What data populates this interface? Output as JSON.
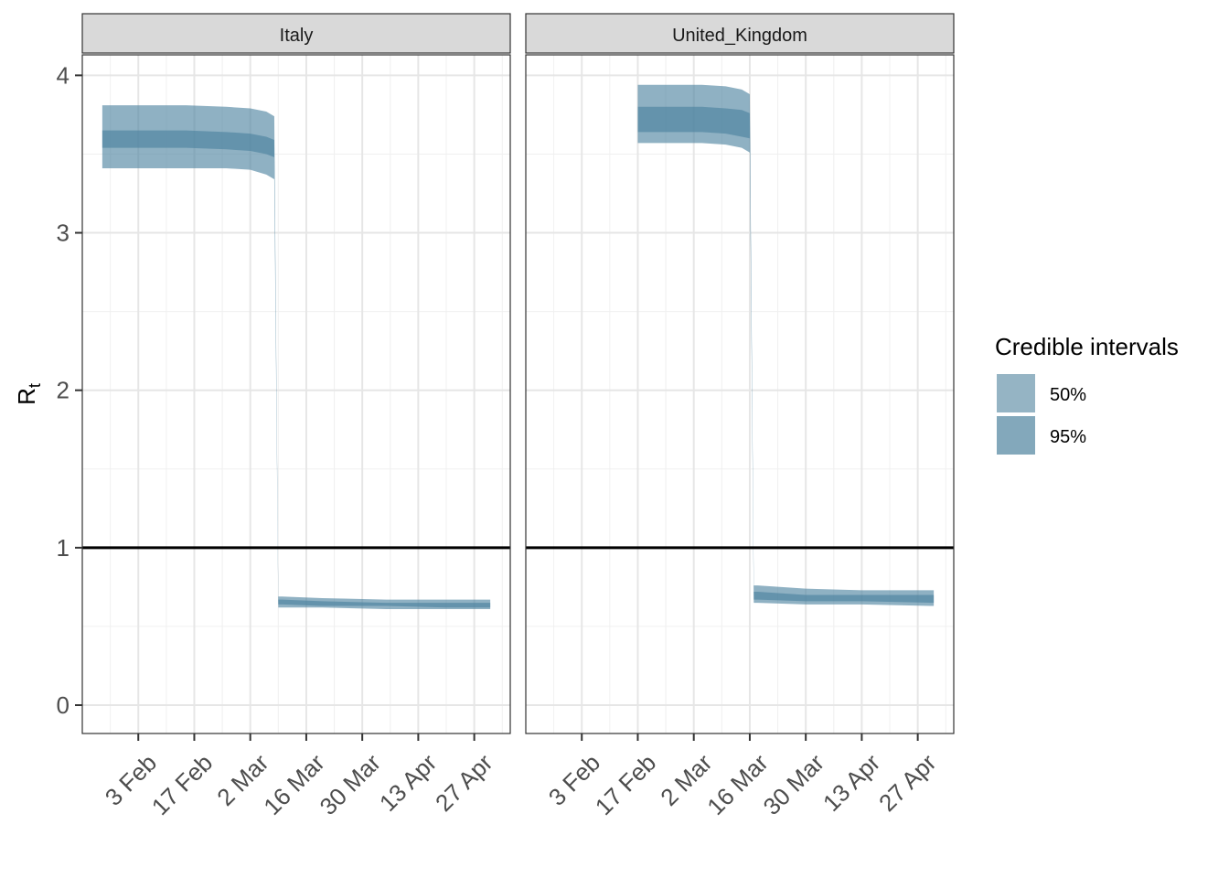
{
  "chart_data": {
    "type": "area",
    "ylabel": "R",
    "ylabel_sub": "t",
    "ylim": [
      -0.18,
      4.13
    ],
    "y_ticks": [
      0,
      1,
      2,
      3,
      4
    ],
    "y_tick_labels": [
      "0",
      "1",
      "2",
      "3",
      "4"
    ],
    "reference_line": 1,
    "x_tick_labels": [
      "3 Feb",
      "17 Feb",
      "2 Mar",
      "16 Mar",
      "30 Mar",
      "13 Apr",
      "27 Apr"
    ],
    "legend": {
      "title": "Credible intervals",
      "position": "right",
      "entries": [
        {
          "label": "50%",
          "color": "#95b4c4"
        },
        {
          "label": "95%",
          "color": "#83a8bb"
        }
      ]
    },
    "band_color": "#4a819e",
    "panels": [
      {
        "title": "Italy",
        "xlim": [
          "2020-01-20",
          "2020-05-06"
        ],
        "x_ticks": [
          "2020-02-03",
          "2020-02-17",
          "2020-03-02",
          "2020-03-16",
          "2020-03-30",
          "2020-04-13",
          "2020-04-27"
        ],
        "x": [
          "2020-01-25",
          "2020-02-05",
          "2020-02-15",
          "2020-02-25",
          "2020-03-02",
          "2020-03-06",
          "2020-03-08",
          "2020-03-09",
          "2020-03-10",
          "2020-03-20",
          "2020-04-05",
          "2020-04-20",
          "2020-05-01"
        ],
        "lower95": [
          3.41,
          3.41,
          3.41,
          3.41,
          3.4,
          3.37,
          3.34,
          0.62,
          0.62,
          0.62,
          0.61,
          0.61,
          0.61
        ],
        "lower50": [
          3.54,
          3.54,
          3.54,
          3.53,
          3.52,
          3.5,
          3.48,
          0.64,
          0.64,
          0.63,
          0.63,
          0.62,
          0.62
        ],
        "upper50": [
          3.65,
          3.65,
          3.65,
          3.64,
          3.63,
          3.61,
          3.59,
          0.67,
          0.67,
          0.66,
          0.65,
          0.65,
          0.65
        ],
        "upper95": [
          3.81,
          3.81,
          3.81,
          3.8,
          3.79,
          3.77,
          3.74,
          0.69,
          0.69,
          0.68,
          0.67,
          0.67,
          0.67
        ]
      },
      {
        "title": "United_Kingdom",
        "xlim": [
          "2020-01-20",
          "2020-05-06"
        ],
        "x_ticks": [
          "2020-02-03",
          "2020-02-17",
          "2020-03-02",
          "2020-03-16",
          "2020-03-30",
          "2020-04-13",
          "2020-04-27"
        ],
        "x": [
          "2020-02-17",
          "2020-02-25",
          "2020-03-04",
          "2020-03-10",
          "2020-03-14",
          "2020-03-16",
          "2020-03-17",
          "2020-03-18",
          "2020-03-30",
          "2020-04-13",
          "2020-05-01"
        ],
        "lower95": [
          3.57,
          3.57,
          3.57,
          3.56,
          3.54,
          3.51,
          0.65,
          0.65,
          0.64,
          0.64,
          0.63
        ],
        "lower50": [
          3.64,
          3.64,
          3.64,
          3.63,
          3.61,
          3.6,
          0.67,
          0.67,
          0.66,
          0.66,
          0.65
        ],
        "upper50": [
          3.8,
          3.8,
          3.8,
          3.79,
          3.78,
          3.76,
          0.72,
          0.72,
          0.7,
          0.7,
          0.7
        ],
        "upper95": [
          3.94,
          3.94,
          3.94,
          3.93,
          3.91,
          3.88,
          0.76,
          0.76,
          0.74,
          0.73,
          0.73
        ]
      }
    ]
  }
}
